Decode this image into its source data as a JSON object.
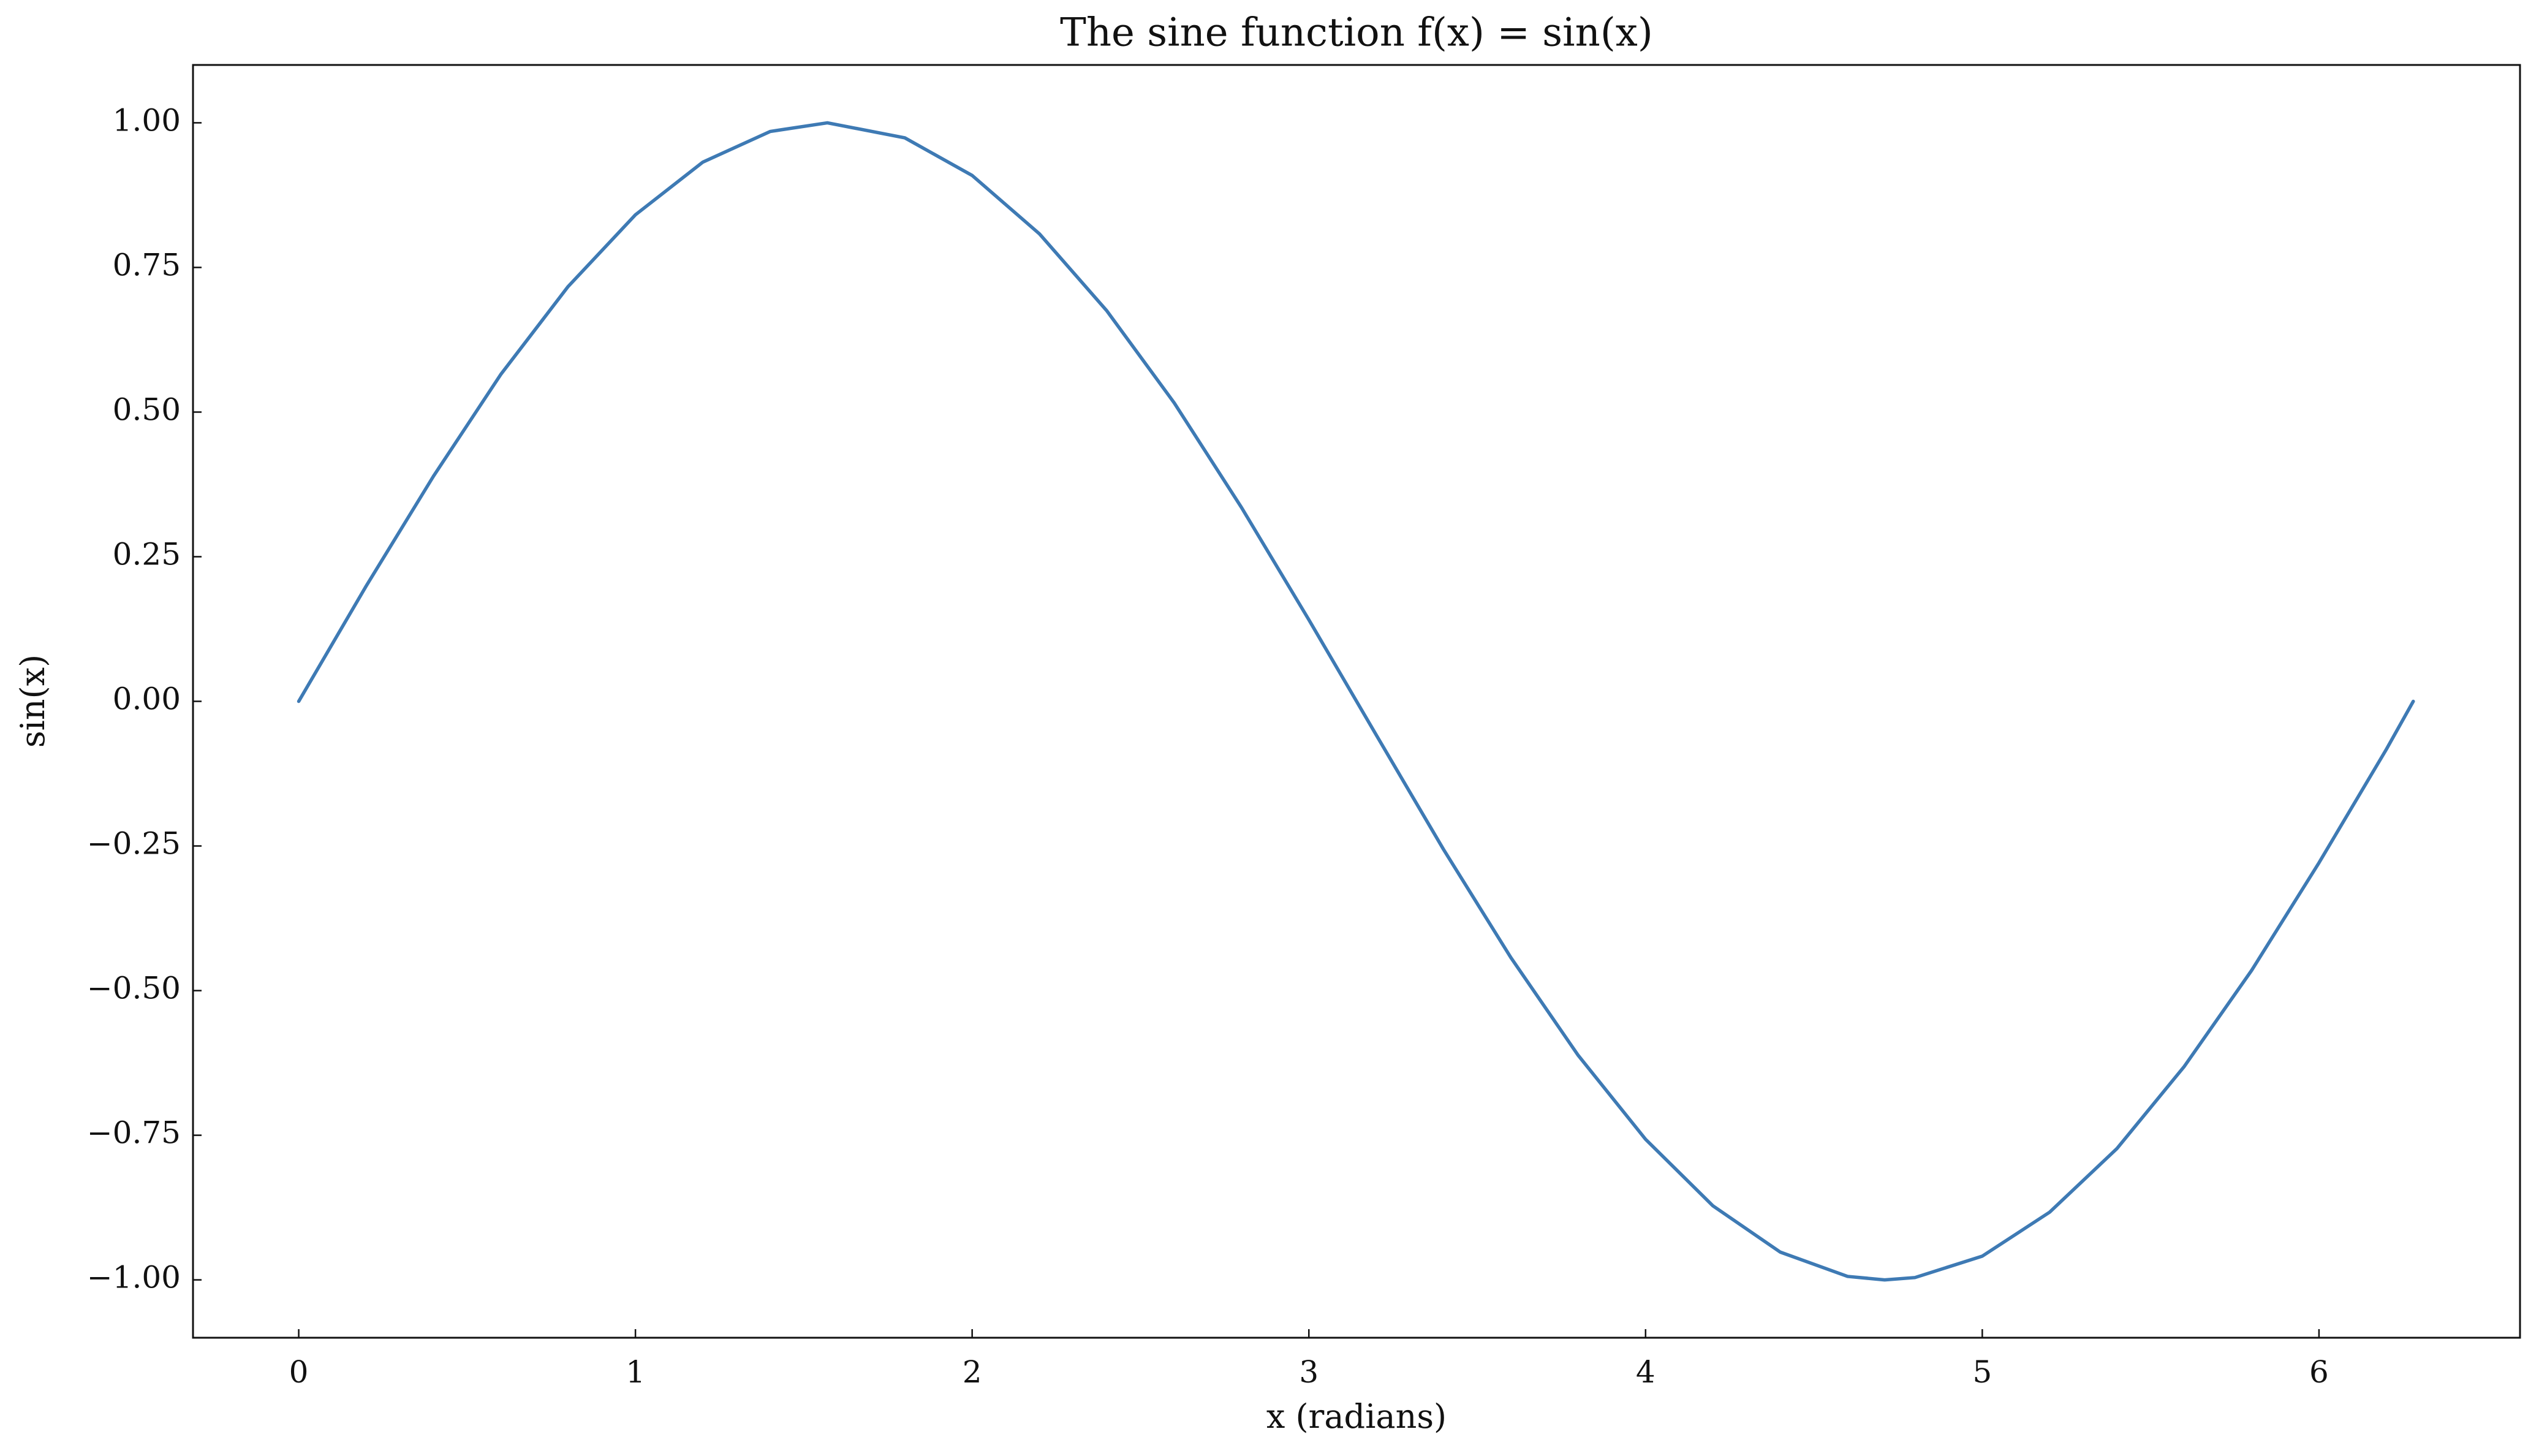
{
  "chart_data": {
    "type": "line",
    "title": "The sine function f(x) = sin(x)",
    "x_label": "x (radians)",
    "y_label": "sin(x)",
    "xlim": [
      -0.314,
      6.597
    ],
    "ylim": [
      -1.1,
      1.1
    ],
    "xticks": [
      0,
      1,
      2,
      3,
      4,
      5,
      6
    ],
    "yticks": [
      {
        "value": -1,
        "label": "−1.00"
      },
      {
        "value": -0.75,
        "label": "−0.75"
      },
      {
        "value": -0.5,
        "label": "−0.50"
      },
      {
        "value": -0.25,
        "label": "−0.25"
      },
      {
        "value": 0,
        "label": "0.00"
      },
      {
        "value": 0.25,
        "label": "0.25"
      },
      {
        "value": 0.5,
        "label": "0.50"
      },
      {
        "value": 0.75,
        "label": "0.75"
      },
      {
        "value": 1,
        "label": "1.00"
      }
    ],
    "grid": false,
    "x": [
      0,
      0.2,
      0.4,
      0.6,
      0.8,
      1.0,
      1.2,
      1.4,
      1.57,
      1.8,
      2.0,
      2.2,
      2.4,
      2.6,
      2.8,
      3.0,
      3.2,
      3.4,
      3.6,
      3.8,
      4.0,
      4.2,
      4.4,
      4.6,
      4.71,
      4.8,
      5.0,
      5.2,
      5.4,
      5.6,
      5.8,
      6.0,
      6.2,
      6.28
    ],
    "series": [
      {
        "name": "sin(x)",
        "color": "#3e7ab4",
        "values": [
          0,
          0.199,
          0.389,
          0.565,
          0.717,
          0.841,
          0.932,
          0.985,
          1.0,
          0.974,
          0.909,
          0.808,
          0.675,
          0.516,
          0.335,
          0.141,
          -0.058,
          -0.256,
          -0.443,
          -0.612,
          -0.757,
          -0.872,
          -0.952,
          -0.994,
          -1.0,
          -0.996,
          -0.959,
          -0.883,
          -0.773,
          -0.631,
          -0.465,
          -0.279,
          -0.083,
          0
        ]
      }
    ]
  }
}
